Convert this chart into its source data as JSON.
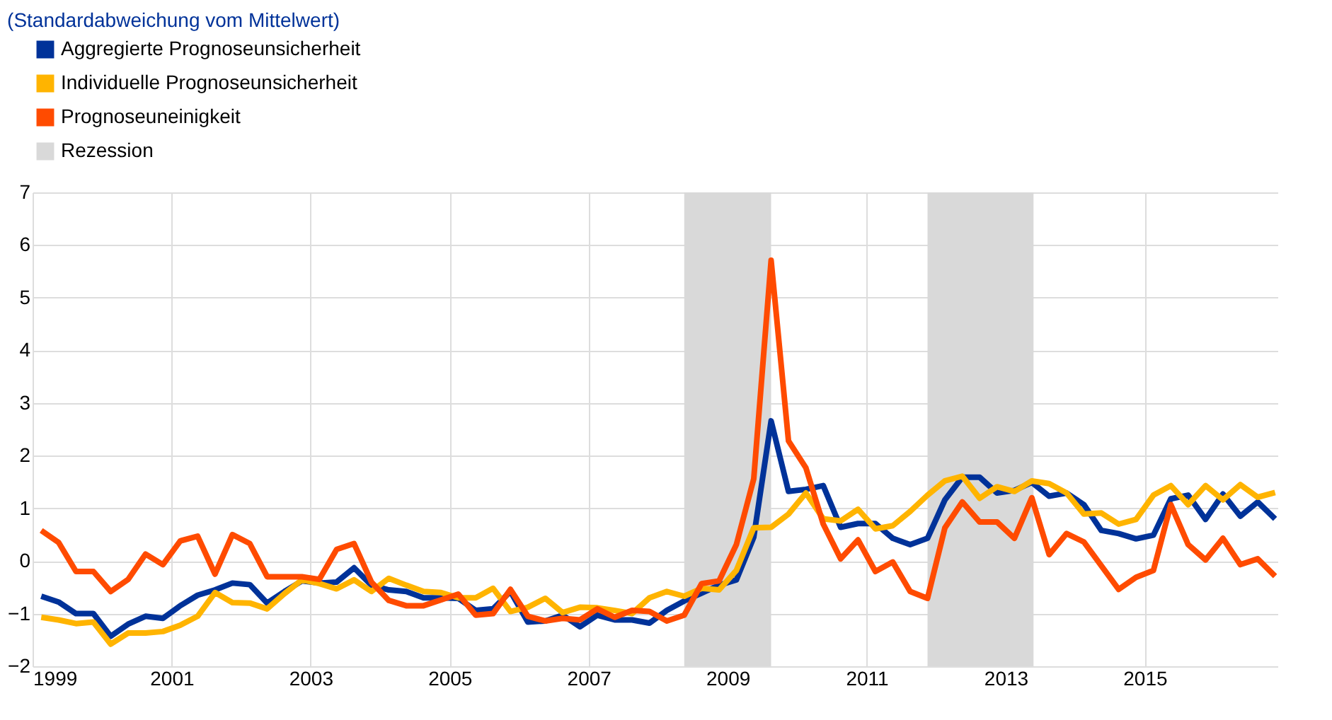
{
  "chart_data": {
    "type": "line",
    "title": "(Standardabweichung vom Mittelwert)",
    "x": [
      1999.125,
      1999.375,
      1999.625,
      1999.875,
      2000.125,
      2000.375,
      2000.625,
      2000.875,
      2001.125,
      2001.375,
      2001.625,
      2001.875,
      2002.125,
      2002.375,
      2002.625,
      2002.875,
      2003.125,
      2003.375,
      2003.625,
      2003.875,
      2004.125,
      2004.375,
      2004.625,
      2004.875,
      2005.125,
      2005.375,
      2005.625,
      2005.875,
      2006.125,
      2006.375,
      2006.625,
      2006.875,
      2007.125,
      2007.375,
      2007.625,
      2007.875,
      2008.125,
      2008.375,
      2008.625,
      2008.875,
      2009.125,
      2009.375,
      2009.625,
      2009.875,
      2010.125,
      2010.375,
      2010.625,
      2010.875,
      2011.125,
      2011.375,
      2011.625,
      2011.875,
      2012.125,
      2012.375,
      2012.625,
      2012.875,
      2013.125,
      2013.375,
      2013.625,
      2013.875,
      2014.125,
      2014.375,
      2014.625,
      2014.875,
      2015.125,
      2015.375,
      2015.625,
      2015.875,
      2016.125,
      2016.375,
      2016.625,
      2016.875
    ],
    "series": [
      {
        "name": "Aggregierte Prognoseunsicherheit",
        "color": "#003299",
        "values": [
          -0.67,
          -0.78,
          -1.0,
          -1.0,
          -1.43,
          -1.2,
          -1.05,
          -1.09,
          -0.85,
          -0.65,
          -0.55,
          -0.42,
          -0.45,
          -0.8,
          -0.58,
          -0.38,
          -0.42,
          -0.4,
          -0.13,
          -0.46,
          -0.55,
          -0.58,
          -0.7,
          -0.7,
          -0.71,
          -0.94,
          -0.91,
          -0.58,
          -1.16,
          -1.14,
          -1.03,
          -1.25,
          -1.03,
          -1.12,
          -1.12,
          -1.18,
          -0.94,
          -0.76,
          -0.61,
          -0.46,
          -0.36,
          0.45,
          2.66,
          1.32,
          1.36,
          1.43,
          0.64,
          0.71,
          0.71,
          0.43,
          0.31,
          0.43,
          1.16,
          1.59,
          1.59,
          1.29,
          1.34,
          1.49,
          1.23,
          1.29,
          1.07,
          0.58,
          0.52,
          0.42,
          0.49,
          1.18,
          1.25,
          0.79,
          1.27,
          0.85,
          1.12,
          0.8
        ]
      },
      {
        "name": "Individuelle Prognoseunsicherheit",
        "color": "#ffb400",
        "values": [
          -1.07,
          -1.12,
          -1.19,
          -1.16,
          -1.58,
          -1.37,
          -1.37,
          -1.34,
          -1.22,
          -1.05,
          -0.6,
          -0.79,
          -0.8,
          -0.91,
          -0.62,
          -0.36,
          -0.43,
          -0.53,
          -0.36,
          -0.58,
          -0.33,
          -0.46,
          -0.58,
          -0.6,
          -0.7,
          -0.7,
          -0.52,
          -0.96,
          -0.88,
          -0.71,
          -0.98,
          -0.88,
          -0.89,
          -0.94,
          -1.0,
          -0.7,
          -0.58,
          -0.67,
          -0.52,
          -0.55,
          -0.18,
          0.63,
          0.64,
          0.89,
          1.29,
          0.8,
          0.76,
          0.98,
          0.61,
          0.67,
          0.94,
          1.25,
          1.52,
          1.61,
          1.19,
          1.41,
          1.32,
          1.52,
          1.47,
          1.29,
          0.89,
          0.91,
          0.7,
          0.79,
          1.25,
          1.43,
          1.07,
          1.43,
          1.16,
          1.45,
          1.21,
          1.3
        ]
      },
      {
        "name": "Prognoseuneinigkeit",
        "color": "#ff4b00",
        "values": [
          0.58,
          0.35,
          -0.2,
          -0.2,
          -0.58,
          -0.35,
          0.13,
          -0.07,
          0.38,
          0.47,
          -0.25,
          0.5,
          0.33,
          -0.3,
          -0.3,
          -0.3,
          -0.35,
          0.22,
          0.33,
          -0.4,
          -0.75,
          -0.85,
          -0.85,
          -0.74,
          -0.63,
          -1.03,
          -1.0,
          -0.54,
          -1.05,
          -1.14,
          -1.09,
          -1.12,
          -0.91,
          -1.07,
          -0.94,
          -0.96,
          -1.14,
          -1.03,
          -0.43,
          -0.38,
          0.31,
          1.56,
          5.71,
          2.28,
          1.77,
          0.7,
          0.04,
          0.4,
          -0.2,
          -0.02,
          -0.58,
          -0.71,
          0.63,
          1.12,
          0.74,
          0.74,
          0.43,
          1.2,
          0.12,
          0.52,
          0.36,
          -0.09,
          -0.54,
          -0.31,
          -0.18,
          1.07,
          0.31,
          0.02,
          0.43,
          -0.07,
          0.04,
          -0.29
        ]
      }
    ],
    "bands": [
      {
        "axis": "x",
        "from": 2008.375,
        "to": 2009.625,
        "label": "Rezession",
        "color": "#d9d9d9"
      },
      {
        "axis": "x",
        "from": 2011.875,
        "to": 2013.4,
        "color": "#d9d9d9"
      }
    ],
    "xlim": [
      1999,
      2016.92
    ],
    "xticks": [
      1999,
      2001,
      2003,
      2005,
      2007,
      2009,
      2011,
      2013,
      2015
    ],
    "ylim": [
      -2,
      7
    ],
    "yticks": [
      -2,
      -1,
      0,
      1,
      2,
      3,
      4,
      5,
      6,
      7
    ],
    "grid": true,
    "legend": "top left",
    "line_style": "solid",
    "marker": "none"
  }
}
